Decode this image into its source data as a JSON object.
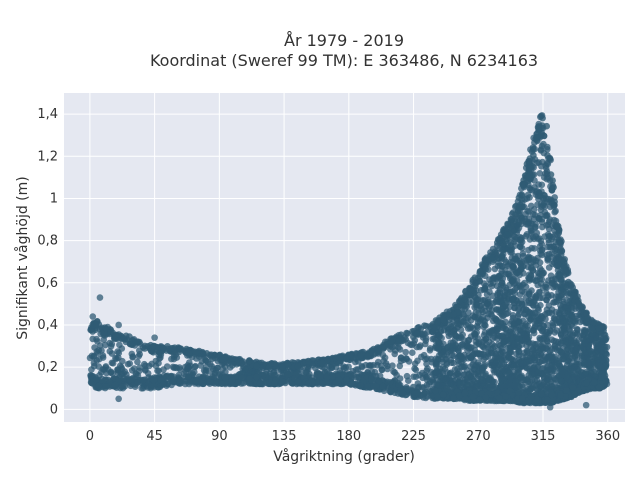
{
  "chart_data": {
    "type": "scatter",
    "title": [
      "År 1979 - 2019",
      "Koordinat (Sweref 99 TM): E 363486, N 6234163"
    ],
    "xlabel": "Vågriktning (grader)",
    "ylabel": "Signifikant våghöjd (m)",
    "xlim": [
      -18,
      372
    ],
    "ylim": [
      -0.06,
      1.5
    ],
    "xticks": [
      0,
      45,
      90,
      135,
      180,
      225,
      270,
      315,
      360
    ],
    "yticks": [
      0,
      0.2,
      0.4,
      0.6,
      0.8,
      1,
      1.2,
      1.4
    ],
    "ytick_labels": [
      "0",
      "0,2",
      "0,4",
      "0,6",
      "0,8",
      "1",
      "1,2",
      "1,4"
    ],
    "grid": true,
    "marker_color": "#2f5b74",
    "background_color": "#e5e8f1",
    "envelope": {
      "direction": [
        0,
        5,
        10,
        15,
        20,
        30,
        45,
        60,
        75,
        90,
        105,
        120,
        135,
        150,
        165,
        180,
        195,
        210,
        225,
        240,
        255,
        265,
        275,
        285,
        295,
        300,
        305,
        310,
        313,
        315,
        317,
        320,
        325,
        330,
        335,
        340,
        345,
        350,
        355,
        360
      ],
      "min_height": [
        0.12,
        0.1,
        0.1,
        0.1,
        0.1,
        0.1,
        0.1,
        0.12,
        0.12,
        0.12,
        0.12,
        0.12,
        0.12,
        0.12,
        0.12,
        0.12,
        0.1,
        0.08,
        0.06,
        0.05,
        0.05,
        0.04,
        0.04,
        0.04,
        0.04,
        0.03,
        0.03,
        0.03,
        0.03,
        0.03,
        0.03,
        0.03,
        0.04,
        0.05,
        0.06,
        0.08,
        0.09,
        0.1,
        0.1,
        0.12
      ],
      "max_height": [
        0.4,
        0.42,
        0.4,
        0.38,
        0.36,
        0.34,
        0.3,
        0.3,
        0.28,
        0.26,
        0.24,
        0.22,
        0.22,
        0.23,
        0.24,
        0.26,
        0.28,
        0.34,
        0.38,
        0.42,
        0.5,
        0.6,
        0.72,
        0.82,
        0.95,
        1.05,
        1.2,
        1.34,
        1.4,
        1.42,
        1.38,
        1.2,
        0.9,
        0.72,
        0.6,
        0.52,
        0.46,
        0.42,
        0.4,
        0.38
      ]
    },
    "outliers": [
      {
        "x": 7,
        "y": 0.53
      },
      {
        "x": 2,
        "y": 0.44
      },
      {
        "x": 20,
        "y": 0.4
      },
      {
        "x": 25,
        "y": 0.32
      },
      {
        "x": 45,
        "y": 0.34
      },
      {
        "x": 20,
        "y": 0.05
      },
      {
        "x": 108,
        "y": 0.19
      },
      {
        "x": 290,
        "y": 0.83
      },
      {
        "x": 285,
        "y": 0.8
      },
      {
        "x": 280,
        "y": 0.72
      },
      {
        "x": 345,
        "y": 0.02
      },
      {
        "x": 320,
        "y": 0.01
      }
    ]
  }
}
